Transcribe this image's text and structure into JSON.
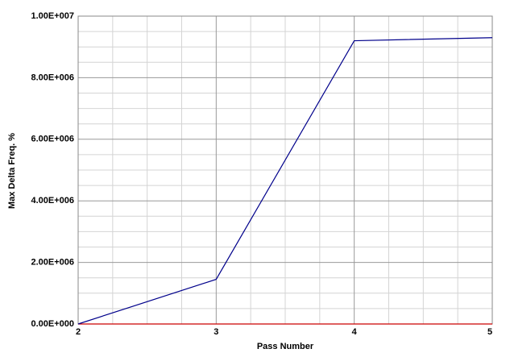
{
  "chart_data": {
    "type": "line",
    "x_label": "Pass Number",
    "y_label": "Max Delta Freq. %",
    "x": [
      2,
      3,
      4,
      5
    ],
    "series": [
      {
        "color": "#00008b",
        "values": [
          0,
          1450000,
          9200000,
          9300000
        ]
      },
      {
        "color": "#cc0000",
        "values": [
          0,
          0,
          0,
          0
        ]
      }
    ],
    "xlim": [
      2,
      5
    ],
    "xticks": [
      2,
      3,
      4,
      5
    ],
    "x_minor_ticks": [
      2.25,
      2.5,
      2.75,
      3.25,
      3.5,
      3.75,
      4.25,
      4.5,
      4.75
    ],
    "ylim": [
      0,
      10000000
    ],
    "yticks": [
      {
        "value": 0,
        "label": "0.00E+000"
      },
      {
        "value": 2000000,
        "label": "2.00E+006"
      },
      {
        "value": 4000000,
        "label": "4.00E+006"
      },
      {
        "value": 6000000,
        "label": "6.00E+006"
      },
      {
        "value": 8000000,
        "label": "8.00E+006"
      },
      {
        "value": 10000000,
        "label": "1.00E+007"
      }
    ],
    "y_minor_ticks": [
      500000,
      1000000,
      1500000,
      2500000,
      3000000,
      3500000,
      4500000,
      5000000,
      5500000,
      6500000,
      7000000,
      7500000,
      8500000,
      9000000,
      9500000
    ],
    "grid": true
  }
}
